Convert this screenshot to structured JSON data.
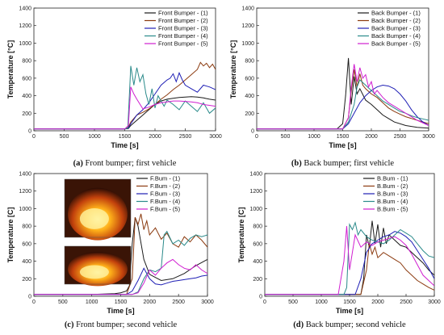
{
  "chart_data": [
    {
      "type": "line",
      "caption": {
        "label": "(a)",
        "text": " Front bumper; first vehicle"
      },
      "xlabel": "Time [s]",
      "ylabel": "Temperature [°C]",
      "xlim": [
        0,
        3000
      ],
      "ylim": [
        0,
        1400
      ],
      "xticks": [
        0,
        500,
        1000,
        1500,
        2000,
        2500,
        3000
      ],
      "yticks": [
        0,
        200,
        400,
        600,
        800,
        1000,
        1200,
        1400
      ],
      "legend": "top-right",
      "series": [
        {
          "name": "Front Bumper - (1)",
          "color": "#1a1a1a",
          "x": [
            0,
            1500,
            1560,
            1600,
            1700,
            1800,
            1900,
            2000,
            2100,
            2200,
            2300,
            2400,
            2500,
            2600,
            2700,
            2800,
            2900,
            3000
          ],
          "y": [
            20,
            20,
            25,
            60,
            120,
            180,
            240,
            300,
            340,
            360,
            370,
            380,
            385,
            390,
            385,
            375,
            360,
            350
          ]
        },
        {
          "name": "Front Bumper - (2)",
          "color": "#8b3a0f",
          "x": [
            0,
            1500,
            1560,
            1600,
            1700,
            1800,
            1900,
            2000,
            2100,
            2200,
            2300,
            2400,
            2500,
            2600,
            2700,
            2750,
            2800,
            2850,
            2900,
            2950,
            3000
          ],
          "y": [
            20,
            20,
            40,
            100,
            180,
            210,
            250,
            300,
            360,
            410,
            470,
            520,
            580,
            640,
            700,
            780,
            740,
            770,
            720,
            760,
            700
          ]
        },
        {
          "name": "Front Bumper - (3)",
          "color": "#1f1fb5",
          "x": [
            0,
            1500,
            1560,
            1600,
            1700,
            1800,
            1900,
            2000,
            2100,
            2200,
            2250,
            2300,
            2350,
            2400,
            2450,
            2500,
            2600,
            2700,
            2800,
            2900,
            3000
          ],
          "y": [
            20,
            20,
            30,
            80,
            180,
            240,
            320,
            420,
            520,
            580,
            600,
            650,
            560,
            660,
            580,
            520,
            480,
            440,
            520,
            500,
            470
          ]
        },
        {
          "name": "Front Bumper - (4)",
          "color": "#2a8a8a",
          "x": [
            0,
            1500,
            1550,
            1600,
            1650,
            1700,
            1750,
            1800,
            1850,
            1900,
            1950,
            2000,
            2050,
            2100,
            2150,
            2200,
            2300,
            2400,
            2500,
            2600,
            2700,
            2800,
            2900,
            3000
          ],
          "y": [
            20,
            20,
            30,
            740,
            520,
            720,
            560,
            640,
            420,
            300,
            480,
            260,
            400,
            340,
            280,
            350,
            300,
            240,
            340,
            280,
            220,
            320,
            200,
            260
          ]
        },
        {
          "name": "Front Bumper - (5)",
          "color": "#d01ed0",
          "x": [
            0,
            1500,
            1560,
            1600,
            1650,
            1700,
            1800,
            1900,
            2000,
            2100,
            2200,
            2300,
            2400,
            2500,
            2600,
            2700,
            2800,
            2900,
            3000
          ],
          "y": [
            20,
            20,
            60,
            500,
            420,
            360,
            250,
            270,
            300,
            320,
            330,
            340,
            340,
            335,
            330,
            320,
            300,
            290,
            280
          ]
        }
      ]
    },
    {
      "type": "line",
      "caption": {
        "label": "(b)",
        "text": " Back bumper; first vehicle"
      },
      "xlabel": "Time [s]",
      "ylabel": "Temperature [°C]",
      "xlim": [
        0,
        3000
      ],
      "ylim": [
        0,
        1400
      ],
      "xticks": [
        0,
        500,
        1000,
        1500,
        2000,
        2500,
        3000
      ],
      "yticks": [
        0,
        200,
        400,
        600,
        800,
        1000,
        1200,
        1400
      ],
      "legend": "top-right",
      "series": [
        {
          "name": "Back Bumper - (1)",
          "color": "#1a1a1a",
          "x": [
            0,
            1400,
            1500,
            1550,
            1600,
            1650,
            1700,
            1750,
            1800,
            1900,
            2000,
            2100,
            2200,
            2300,
            2400,
            2600,
            2800,
            3000
          ],
          "y": [
            20,
            20,
            80,
            400,
            830,
            300,
            620,
            420,
            480,
            350,
            300,
            240,
            180,
            140,
            100,
            60,
            40,
            30
          ]
        },
        {
          "name": "Back Bumper - (2)",
          "color": "#8b3a0f",
          "x": [
            0,
            1500,
            1600,
            1650,
            1700,
            1750,
            1800,
            1850,
            1900,
            2000,
            2100,
            2200,
            2300,
            2400,
            2500,
            2600,
            2700,
            2800,
            3000
          ],
          "y": [
            20,
            20,
            150,
            450,
            700,
            500,
            650,
            520,
            480,
            420,
            380,
            320,
            260,
            220,
            190,
            160,
            140,
            120,
            80
          ]
        },
        {
          "name": "Back Bumper - (3)",
          "color": "#1f1fb5",
          "x": [
            0,
            1500,
            1600,
            1700,
            1800,
            1900,
            2000,
            2100,
            2200,
            2300,
            2400,
            2500,
            2600,
            2700,
            2800,
            2900,
            3000
          ],
          "y": [
            20,
            20,
            80,
            200,
            320,
            400,
            460,
            500,
            520,
            510,
            480,
            420,
            340,
            240,
            160,
            100,
            60
          ]
        },
        {
          "name": "Back Bumper - (4)",
          "color": "#2a8a8a",
          "x": [
            0,
            1500,
            1600,
            1700,
            1750,
            1800,
            1900,
            2000,
            2100,
            2200,
            2300,
            2400,
            2500,
            2600,
            2700,
            2800,
            3000
          ],
          "y": [
            20,
            20,
            100,
            300,
            500,
            580,
            520,
            460,
            400,
            340,
            300,
            260,
            220,
            200,
            170,
            150,
            120
          ]
        },
        {
          "name": "Back Bumper - (5)",
          "color": "#d01ed0",
          "x": [
            0,
            1500,
            1600,
            1650,
            1700,
            1750,
            1800,
            1850,
            1900,
            1950,
            2000,
            2050,
            2100,
            2200,
            2300,
            2400,
            2500,
            2600,
            2700,
            2800,
            3000
          ],
          "y": [
            20,
            20,
            150,
            500,
            760,
            560,
            720,
            600,
            640,
            500,
            560,
            420,
            460,
            380,
            320,
            280,
            240,
            200,
            160,
            120,
            60
          ]
        }
      ]
    },
    {
      "type": "line",
      "caption": {
        "label": "(c)",
        "text": " Front bumper; second vehicle"
      },
      "xlabel": "Time [s]",
      "ylabel": "Temperature [C]",
      "xlim": [
        0,
        3000
      ],
      "ylim": [
        0,
        1400
      ],
      "xticks": [
        0,
        500,
        1000,
        1500,
        2000,
        2500,
        3000
      ],
      "yticks": [
        0,
        200,
        400,
        600,
        800,
        1000,
        1200,
        1400
      ],
      "legend": "top-right",
      "series": [
        {
          "name": "F.Bum - (1)",
          "color": "#1a1a1a",
          "x": [
            0,
            1000,
            1200,
            1400,
            1500,
            1600,
            1650,
            1700,
            1750,
            1800,
            1900,
            2000,
            2200,
            2400,
            2600,
            2800,
            3000
          ],
          "y": [
            20,
            20,
            25,
            30,
            40,
            60,
            120,
            600,
            900,
            800,
            420,
            250,
            180,
            200,
            260,
            350,
            420
          ]
        },
        {
          "name": "F.Bum - (2)",
          "color": "#8b3a0f",
          "x": [
            0,
            1600,
            1700,
            1750,
            1800,
            1850,
            1900,
            1950,
            2000,
            2100,
            2200,
            2300,
            2400,
            2500,
            2600,
            2700,
            2800,
            2900,
            3000
          ],
          "y": [
            20,
            20,
            200,
            900,
            820,
            940,
            760,
            860,
            700,
            780,
            650,
            720,
            600,
            560,
            680,
            620,
            700,
            640,
            560
          ]
        },
        {
          "name": "F.Bum - (3)",
          "color": "#1f1fb5",
          "x": [
            0,
            1600,
            1700,
            1800,
            1900,
            2000,
            2100,
            2200,
            2300,
            2400,
            2500,
            2600,
            2700,
            2800,
            2900,
            3000
          ],
          "y": [
            20,
            20,
            60,
            180,
            320,
            200,
            140,
            130,
            150,
            170,
            180,
            190,
            200,
            210,
            230,
            240
          ]
        },
        {
          "name": "F.Bum - (4)",
          "color": "#2a8a8a",
          "x": [
            0,
            1700,
            1800,
            1900,
            2000,
            2100,
            2200,
            2250,
            2300,
            2400,
            2500,
            2600,
            2700,
            2800,
            2900,
            3000
          ],
          "y": [
            20,
            20,
            50,
            200,
            300,
            280,
            320,
            700,
            740,
            600,
            640,
            580,
            660,
            700,
            680,
            700
          ]
        },
        {
          "name": "F.Bum - (5)",
          "color": "#d01ed0",
          "x": [
            0,
            1700,
            1800,
            1900,
            2000,
            2100,
            2200,
            2300,
            2400,
            2500,
            2600,
            2700,
            2800,
            2900,
            3000
          ],
          "y": [
            20,
            20,
            40,
            150,
            300,
            240,
            320,
            380,
            420,
            360,
            320,
            300,
            360,
            300,
            260
          ]
        }
      ]
    },
    {
      "type": "line",
      "caption": {
        "label": "(d)",
        "text": " Back bumper; second vehicle"
      },
      "xlabel": "Time [s]",
      "ylabel": "Temperature [C]",
      "xlim": [
        0,
        3000
      ],
      "ylim": [
        0,
        1400
      ],
      "xticks": [
        0,
        500,
        1000,
        1500,
        2000,
        2500,
        3000
      ],
      "yticks": [
        0,
        200,
        400,
        600,
        800,
        1000,
        1200,
        1400
      ],
      "legend": "top-right",
      "series": [
        {
          "name": "B.Bum - (1)",
          "color": "#1a1a1a",
          "x": [
            0,
            1700,
            1750,
            1800,
            1850,
            1900,
            1950,
            2000,
            2050,
            2100,
            2150,
            2200,
            2300,
            2400,
            2500,
            2600,
            2700,
            2800,
            2900,
            3000
          ],
          "y": [
            20,
            20,
            200,
            700,
            560,
            860,
            600,
            820,
            560,
            780,
            600,
            700,
            640,
            580,
            560,
            500,
            440,
            380,
            300,
            240
          ]
        },
        {
          "name": "B.Bum - (2)",
          "color": "#8b3a0f",
          "x": [
            0,
            1700,
            1800,
            1850,
            1900,
            1950,
            2000,
            2100,
            2200,
            2300,
            2400,
            2500,
            2600,
            2700,
            2800,
            2900,
            3000
          ],
          "y": [
            20,
            20,
            300,
            600,
            480,
            560,
            440,
            500,
            460,
            420,
            380,
            300,
            240,
            180,
            140,
            100,
            70
          ]
        },
        {
          "name": "B.Bum - (3)",
          "color": "#1f1fb5",
          "x": [
            0,
            1600,
            1700,
            1800,
            1900,
            2000,
            2100,
            2200,
            2300,
            2400,
            2500,
            2600,
            2700,
            2800,
            2900,
            3000
          ],
          "y": [
            20,
            20,
            200,
            500,
            600,
            640,
            680,
            700,
            740,
            720,
            680,
            620,
            520,
            420,
            320,
            200
          ]
        },
        {
          "name": "B.Bum - (4)",
          "color": "#2a8a8a",
          "x": [
            0,
            1400,
            1450,
            1500,
            1550,
            1600,
            1650,
            1700,
            1800,
            1900,
            2000,
            2100,
            2200,
            2300,
            2400,
            2500,
            2600,
            2700,
            2800,
            2900,
            3000
          ],
          "y": [
            20,
            20,
            100,
            820,
            760,
            840,
            700,
            760,
            680,
            640,
            620,
            600,
            640,
            700,
            760,
            720,
            680,
            600,
            520,
            460,
            440
          ]
        },
        {
          "name": "B.Bum - (5)",
          "color": "#d01ed0",
          "x": [
            0,
            1300,
            1400,
            1450,
            1500,
            1550,
            1600,
            1700,
            1800,
            1900,
            2000,
            2100,
            2200,
            2300,
            2400,
            2500,
            2600,
            2700,
            2800,
            3000
          ],
          "y": [
            20,
            20,
            400,
            800,
            300,
            500,
            700,
            560,
            620,
            580,
            620,
            640,
            660,
            680,
            640,
            580,
            480,
            360,
            240,
            120
          ]
        }
      ]
    }
  ]
}
